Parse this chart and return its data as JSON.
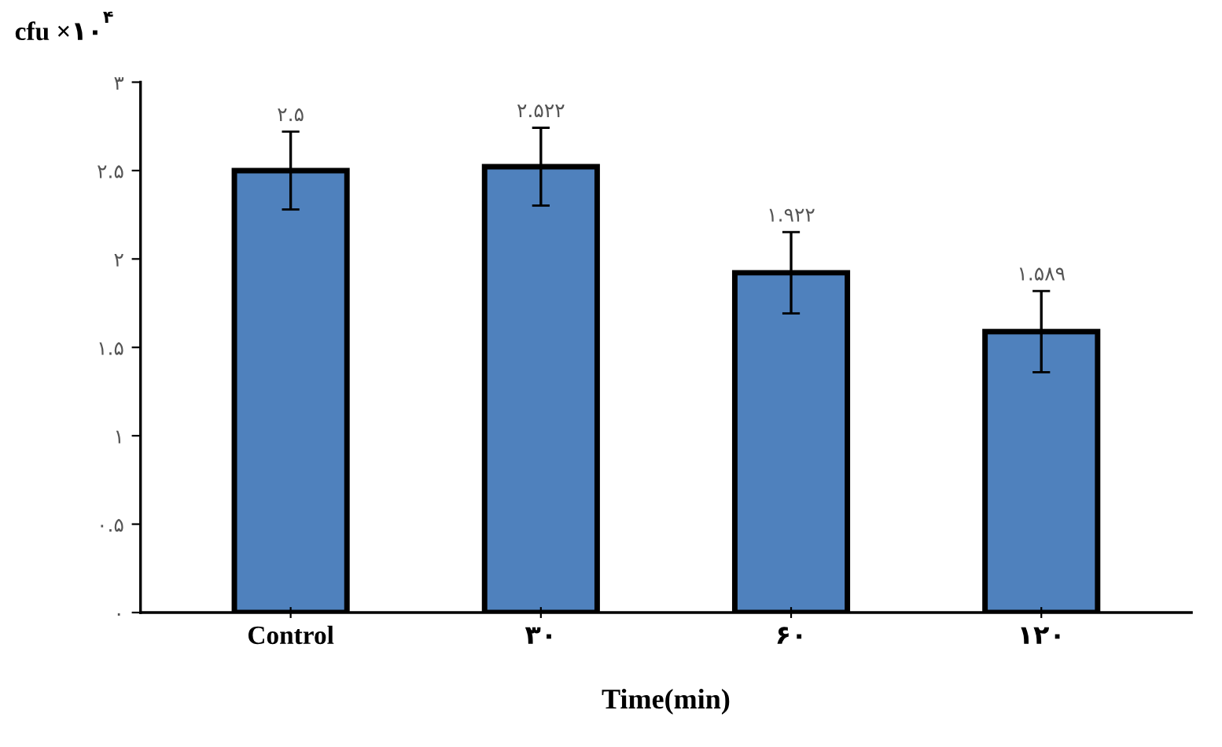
{
  "chart_data": {
    "type": "bar",
    "xlabel": "Time(min)",
    "ylabel": "cfu ×۱۰$^{۴}$",
    "categories": [
      "Control",
      "۳۰",
      "۶۰",
      "۱۲۰"
    ],
    "values": [
      2.5,
      2.522,
      1.922,
      1.589
    ],
    "errors": [
      0.22,
      0.22,
      0.23,
      0.23
    ],
    "value_labels": [
      "۲.۵",
      "۲.۵۲۲",
      "۱.۹۲۲",
      "۱.۵۸۹"
    ],
    "color": "#4f81bd",
    "ylim": [
      0,
      3
    ],
    "yticks": [
      {
        "value": 0,
        "label": "۰"
      },
      {
        "value": 0.5,
        "label": "۰.۵"
      },
      {
        "value": 1,
        "label": "۱"
      },
      {
        "value": 1.5,
        "label": "۱.۵"
      },
      {
        "value": 2,
        "label": "۲"
      },
      {
        "value": 2.5,
        "label": "۲.۵"
      },
      {
        "value": 3,
        "label": "۳"
      }
    ],
    "grid": false,
    "legend": false
  }
}
